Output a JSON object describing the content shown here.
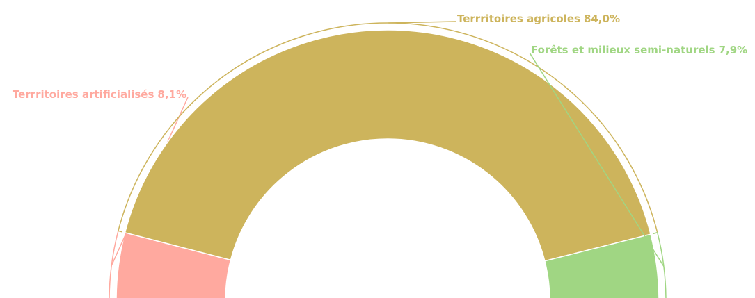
{
  "chart_data": {
    "type": "pie",
    "categories": [
      "Terrritoires artificialisés",
      "Terrritoires agricoles",
      "Forêts et milieux semi-naturels"
    ],
    "values": [
      8.1,
      84.0,
      7.9
    ],
    "value_labels": [
      "8,1%",
      "84,0%",
      "7,9%"
    ],
    "colors": [
      "#ffa99f",
      "#cdb45c",
      "#a0d683"
    ],
    "start_angle": -90,
    "end_angle": 90
  }
}
